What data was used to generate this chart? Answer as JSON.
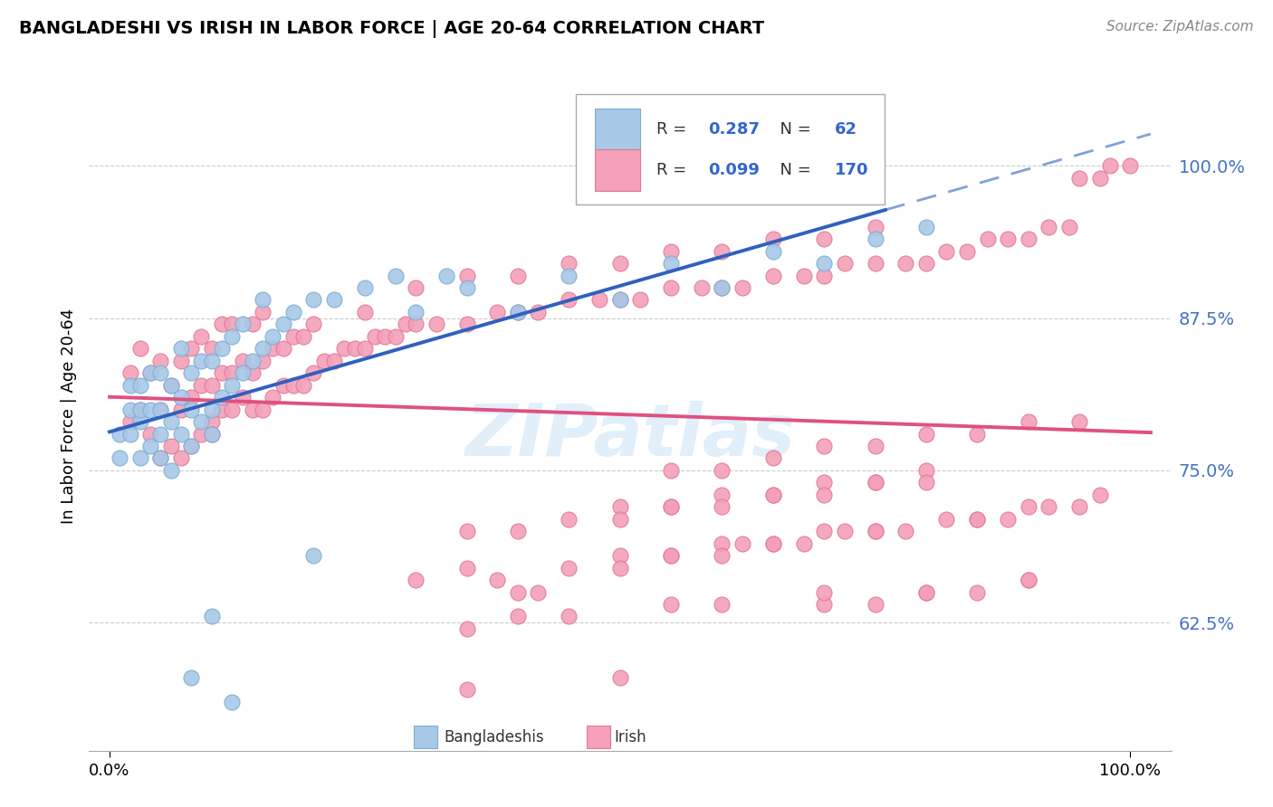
{
  "title": "BANGLADESHI VS IRISH IN LABOR FORCE | AGE 20-64 CORRELATION CHART",
  "source": "Source: ZipAtlas.com",
  "ylabel": "In Labor Force | Age 20-64",
  "ytick_vals": [
    0.625,
    0.75,
    0.875,
    1.0
  ],
  "ytick_labels": [
    "62.5%",
    "75.0%",
    "87.5%",
    "100.0%"
  ],
  "r_bangladeshi": 0.287,
  "n_bangladeshi": 62,
  "r_irish": 0.099,
  "n_irish": 170,
  "bangladeshi_color": "#a8c8e8",
  "bangladeshi_edge": "#7aaed0",
  "irish_color": "#f4a0b8",
  "irish_edge": "#e07898",
  "bangladeshi_line_color": "#3060c0",
  "irish_line_color": "#e05080",
  "watermark": "ZIPatlas",
  "legend_label_bangladeshi": "Bangladeshis",
  "legend_label_irish": "Irish",
  "bx": [
    0.01,
    0.01,
    0.02,
    0.02,
    0.02,
    0.03,
    0.03,
    0.03,
    0.03,
    0.04,
    0.04,
    0.04,
    0.05,
    0.05,
    0.05,
    0.05,
    0.06,
    0.06,
    0.06,
    0.07,
    0.07,
    0.07,
    0.08,
    0.08,
    0.08,
    0.09,
    0.09,
    0.1,
    0.1,
    0.1,
    0.11,
    0.11,
    0.12,
    0.12,
    0.13,
    0.13,
    0.14,
    0.15,
    0.15,
    0.16,
    0.17,
    0.18,
    0.2,
    0.22,
    0.25,
    0.28,
    0.3,
    0.33,
    0.35,
    0.4,
    0.45,
    0.5,
    0.55,
    0.6,
    0.65,
    0.7,
    0.75,
    0.8,
    0.2,
    0.1,
    0.08,
    0.12
  ],
  "by": [
    0.78,
    0.76,
    0.8,
    0.78,
    0.82,
    0.76,
    0.79,
    0.82,
    0.8,
    0.77,
    0.8,
    0.83,
    0.78,
    0.8,
    0.83,
    0.76,
    0.79,
    0.82,
    0.75,
    0.78,
    0.81,
    0.85,
    0.77,
    0.8,
    0.83,
    0.79,
    0.84,
    0.8,
    0.84,
    0.78,
    0.81,
    0.85,
    0.82,
    0.86,
    0.83,
    0.87,
    0.84,
    0.85,
    0.89,
    0.86,
    0.87,
    0.88,
    0.89,
    0.89,
    0.9,
    0.91,
    0.88,
    0.91,
    0.9,
    0.88,
    0.91,
    0.89,
    0.92,
    0.9,
    0.93,
    0.92,
    0.94,
    0.95,
    0.68,
    0.63,
    0.58,
    0.56
  ],
  "ix": [
    0.02,
    0.02,
    0.03,
    0.03,
    0.04,
    0.04,
    0.05,
    0.05,
    0.05,
    0.06,
    0.06,
    0.07,
    0.07,
    0.07,
    0.08,
    0.08,
    0.08,
    0.09,
    0.09,
    0.09,
    0.1,
    0.1,
    0.1,
    0.1,
    0.11,
    0.11,
    0.11,
    0.12,
    0.12,
    0.12,
    0.13,
    0.13,
    0.14,
    0.14,
    0.14,
    0.15,
    0.15,
    0.15,
    0.16,
    0.16,
    0.17,
    0.17,
    0.18,
    0.18,
    0.19,
    0.19,
    0.2,
    0.2,
    0.21,
    0.22,
    0.23,
    0.24,
    0.25,
    0.25,
    0.26,
    0.27,
    0.28,
    0.29,
    0.3,
    0.3,
    0.32,
    0.35,
    0.35,
    0.38,
    0.4,
    0.4,
    0.42,
    0.45,
    0.45,
    0.48,
    0.5,
    0.5,
    0.52,
    0.55,
    0.55,
    0.58,
    0.6,
    0.6,
    0.62,
    0.65,
    0.65,
    0.68,
    0.7,
    0.7,
    0.72,
    0.75,
    0.75,
    0.78,
    0.8,
    0.82,
    0.84,
    0.86,
    0.88,
    0.9,
    0.92,
    0.94,
    0.95,
    0.97,
    0.98,
    1.0,
    0.55,
    0.6,
    0.65,
    0.7,
    0.75,
    0.8,
    0.85,
    0.9,
    0.95,
    0.5,
    0.55,
    0.6,
    0.65,
    0.7,
    0.75,
    0.8,
    0.35,
    0.4,
    0.45,
    0.5,
    0.55,
    0.6,
    0.65,
    0.7,
    0.75,
    0.8,
    0.45,
    0.5,
    0.55,
    0.6,
    0.65,
    0.7,
    0.75,
    0.85,
    0.4,
    0.42,
    0.38,
    0.3,
    0.35,
    0.5,
    0.55,
    0.6,
    0.62,
    0.65,
    0.68,
    0.72,
    0.75,
    0.78,
    0.82,
    0.85,
    0.88,
    0.9,
    0.92,
    0.95,
    0.97,
    0.7,
    0.75,
    0.8,
    0.85,
    0.9,
    0.35,
    0.4,
    0.45,
    0.55,
    0.6,
    0.7,
    0.8,
    0.9,
    0.35,
    0.5
  ],
  "iy": [
    0.79,
    0.83,
    0.8,
    0.85,
    0.78,
    0.83,
    0.76,
    0.8,
    0.84,
    0.77,
    0.82,
    0.76,
    0.8,
    0.84,
    0.77,
    0.81,
    0.85,
    0.78,
    0.82,
    0.86,
    0.79,
    0.82,
    0.85,
    0.78,
    0.8,
    0.83,
    0.87,
    0.8,
    0.83,
    0.87,
    0.81,
    0.84,
    0.8,
    0.83,
    0.87,
    0.8,
    0.84,
    0.88,
    0.81,
    0.85,
    0.82,
    0.85,
    0.82,
    0.86,
    0.82,
    0.86,
    0.83,
    0.87,
    0.84,
    0.84,
    0.85,
    0.85,
    0.85,
    0.88,
    0.86,
    0.86,
    0.86,
    0.87,
    0.87,
    0.9,
    0.87,
    0.87,
    0.91,
    0.88,
    0.88,
    0.91,
    0.88,
    0.89,
    0.92,
    0.89,
    0.89,
    0.92,
    0.89,
    0.9,
    0.93,
    0.9,
    0.9,
    0.93,
    0.9,
    0.91,
    0.94,
    0.91,
    0.91,
    0.94,
    0.92,
    0.92,
    0.95,
    0.92,
    0.92,
    0.93,
    0.93,
    0.94,
    0.94,
    0.94,
    0.95,
    0.95,
    0.99,
    0.99,
    1.0,
    1.0,
    0.75,
    0.75,
    0.76,
    0.77,
    0.77,
    0.78,
    0.78,
    0.79,
    0.79,
    0.72,
    0.72,
    0.73,
    0.73,
    0.74,
    0.74,
    0.75,
    0.7,
    0.7,
    0.71,
    0.71,
    0.72,
    0.72,
    0.73,
    0.73,
    0.74,
    0.74,
    0.67,
    0.68,
    0.68,
    0.69,
    0.69,
    0.7,
    0.7,
    0.71,
    0.65,
    0.65,
    0.66,
    0.66,
    0.67,
    0.67,
    0.68,
    0.68,
    0.69,
    0.69,
    0.69,
    0.7,
    0.7,
    0.7,
    0.71,
    0.71,
    0.71,
    0.72,
    0.72,
    0.72,
    0.73,
    0.64,
    0.64,
    0.65,
    0.65,
    0.66,
    0.62,
    0.63,
    0.63,
    0.64,
    0.64,
    0.65,
    0.65,
    0.66,
    0.57,
    0.58
  ]
}
